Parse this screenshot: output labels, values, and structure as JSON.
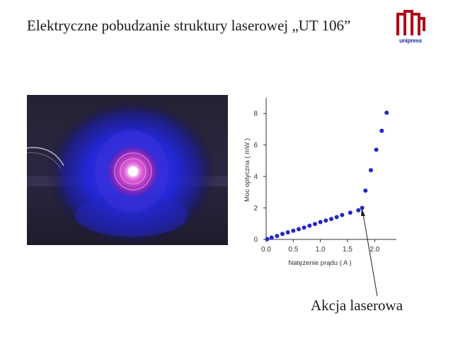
{
  "slide": {
    "title": "Elektryczne pobudzanie struktury laserowej „UT 106”",
    "logo_text": "unipress",
    "annotation": "Akcja laserowa"
  },
  "colors": {
    "marker": "#2525c8",
    "logo_red": "#b00c18",
    "logo_text": "#1a2a9a"
  },
  "chart_data": {
    "type": "scatter",
    "xlabel": "Natężenie prądu ( A )",
    "ylabel": "Moc optyczna ( mW )",
    "xlim": [
      0,
      2.4
    ],
    "ylim": [
      0,
      9
    ],
    "xticks": [
      0.0,
      0.5,
      1.0,
      1.5,
      2.0
    ],
    "xtick_labels": [
      "0.0",
      "0.5",
      "1.0",
      "1.5",
      "2.0"
    ],
    "yticks": [
      0,
      2,
      4,
      6,
      8
    ],
    "ytick_labels": [
      "0",
      "2",
      "4",
      "6",
      "8"
    ],
    "grid": false,
    "series": [
      {
        "x": [
          0.02,
          0.1,
          0.2,
          0.3,
          0.4,
          0.5,
          0.6,
          0.7,
          0.8,
          0.9,
          1.0,
          1.1,
          1.2,
          1.3,
          1.4,
          1.55,
          1.7,
          1.77,
          1.83,
          1.93,
          2.03,
          2.13,
          2.22
        ],
        "y": [
          0.02,
          0.12,
          0.22,
          0.35,
          0.45,
          0.55,
          0.65,
          0.75,
          0.87,
          0.98,
          1.1,
          1.2,
          1.3,
          1.42,
          1.55,
          1.7,
          1.85,
          2.0,
          3.1,
          4.4,
          5.7,
          6.9,
          8.05
        ]
      }
    ]
  }
}
